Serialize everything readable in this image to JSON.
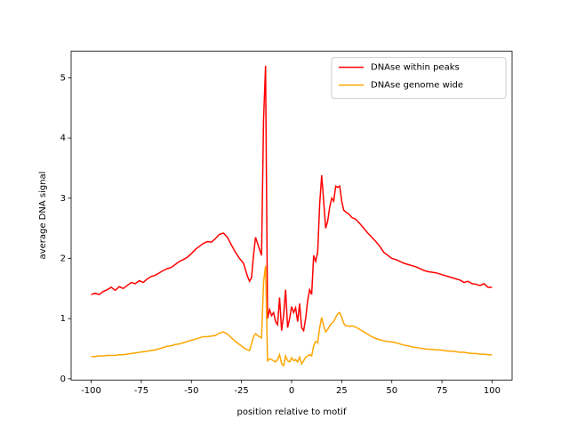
{
  "chart_data": {
    "type": "line",
    "xlabel": "position relative to motif",
    "ylabel": "average DNA signal",
    "legend": "upper right",
    "xlim": [
      -110,
      110
    ],
    "ylim": [
      -0.02,
      5.44
    ],
    "xticks": [
      -100,
      -75,
      -50,
      -25,
      0,
      25,
      50,
      75,
      100
    ],
    "yticks": [
      0,
      1,
      2,
      3,
      4,
      5
    ],
    "x": [
      -100,
      -98,
      -96,
      -94,
      -92,
      -90,
      -88,
      -86,
      -84,
      -82,
      -80,
      -78,
      -76,
      -74,
      -72,
      -70,
      -68,
      -66,
      -64,
      -62,
      -60,
      -58,
      -56,
      -54,
      -52,
      -50,
      -48,
      -46,
      -44,
      -42,
      -40,
      -38,
      -36,
      -34,
      -32,
      -30,
      -28,
      -26,
      -24,
      -22,
      -21,
      -20,
      -19,
      -18,
      -17,
      -16,
      -15,
      -14,
      -13,
      -12,
      -11,
      -10,
      -9,
      -8,
      -7,
      -6,
      -5,
      -4,
      -3,
      -2,
      -1,
      0,
      1,
      2,
      3,
      4,
      5,
      6,
      7,
      8,
      9,
      10,
      11,
      12,
      13,
      14,
      15,
      16,
      17,
      18,
      19,
      20,
      21,
      22,
      23,
      24,
      25,
      26,
      27,
      28,
      29,
      30,
      32,
      34,
      36,
      38,
      40,
      42,
      44,
      46,
      48,
      50,
      52,
      54,
      56,
      58,
      60,
      62,
      64,
      66,
      68,
      70,
      72,
      74,
      76,
      78,
      80,
      82,
      84,
      86,
      88,
      90,
      92,
      94,
      96,
      98,
      100
    ],
    "series": [
      {
        "name": "DNAse within peaks",
        "color": "#ff0000",
        "values": [
          1.4,
          1.42,
          1.4,
          1.45,
          1.48,
          1.52,
          1.47,
          1.53,
          1.5,
          1.55,
          1.6,
          1.58,
          1.63,
          1.6,
          1.66,
          1.7,
          1.72,
          1.76,
          1.8,
          1.83,
          1.85,
          1.9,
          1.95,
          1.98,
          2.02,
          2.08,
          2.15,
          2.2,
          2.25,
          2.28,
          2.27,
          2.33,
          2.4,
          2.42,
          2.35,
          2.22,
          2.1,
          2.0,
          1.92,
          1.7,
          1.62,
          1.68,
          2.05,
          2.35,
          2.25,
          2.15,
          2.05,
          4.3,
          5.2,
          1.0,
          1.15,
          1.05,
          1.1,
          0.95,
          0.9,
          1.35,
          0.8,
          1.05,
          1.48,
          0.85,
          1.0,
          1.2,
          1.1,
          1.18,
          0.95,
          1.25,
          0.85,
          0.8,
          1.0,
          1.3,
          1.48,
          1.4,
          2.05,
          1.95,
          2.1,
          2.9,
          3.38,
          2.95,
          2.5,
          2.62,
          2.85,
          3.0,
          2.95,
          3.2,
          3.18,
          3.2,
          2.95,
          2.8,
          2.77,
          2.75,
          2.72,
          2.68,
          2.65,
          2.58,
          2.5,
          2.42,
          2.35,
          2.28,
          2.2,
          2.1,
          2.05,
          2.0,
          1.98,
          1.95,
          1.92,
          1.9,
          1.88,
          1.86,
          1.83,
          1.8,
          1.78,
          1.77,
          1.76,
          1.74,
          1.72,
          1.7,
          1.68,
          1.66,
          1.64,
          1.6,
          1.62,
          1.58,
          1.57,
          1.55,
          1.58,
          1.52,
          1.52
        ]
      },
      {
        "name": "DNAse genome wide",
        "color": "#ffa500",
        "values": [
          0.37,
          0.37,
          0.38,
          0.38,
          0.39,
          0.39,
          0.39,
          0.4,
          0.4,
          0.41,
          0.42,
          0.43,
          0.44,
          0.45,
          0.46,
          0.47,
          0.48,
          0.5,
          0.52,
          0.54,
          0.55,
          0.57,
          0.58,
          0.6,
          0.62,
          0.64,
          0.66,
          0.68,
          0.7,
          0.7,
          0.71,
          0.72,
          0.76,
          0.78,
          0.74,
          0.68,
          0.62,
          0.57,
          0.52,
          0.48,
          0.47,
          0.58,
          0.7,
          0.75,
          0.72,
          0.7,
          0.68,
          1.6,
          1.88,
          0.3,
          0.33,
          0.32,
          0.3,
          0.28,
          0.32,
          0.4,
          0.25,
          0.22,
          0.38,
          0.3,
          0.28,
          0.35,
          0.3,
          0.32,
          0.28,
          0.36,
          0.25,
          0.3,
          0.36,
          0.38,
          0.4,
          0.38,
          0.55,
          0.62,
          0.6,
          0.85,
          1.02,
          0.88,
          0.78,
          0.82,
          0.88,
          0.92,
          0.95,
          1.02,
          1.08,
          1.1,
          1.02,
          0.92,
          0.88,
          0.88,
          0.87,
          0.88,
          0.86,
          0.82,
          0.78,
          0.74,
          0.7,
          0.67,
          0.65,
          0.63,
          0.62,
          0.61,
          0.6,
          0.58,
          0.56,
          0.55,
          0.53,
          0.52,
          0.51,
          0.5,
          0.49,
          0.49,
          0.48,
          0.48,
          0.47,
          0.46,
          0.46,
          0.45,
          0.44,
          0.44,
          0.43,
          0.42,
          0.42,
          0.41,
          0.41,
          0.4,
          0.4
        ]
      }
    ]
  }
}
